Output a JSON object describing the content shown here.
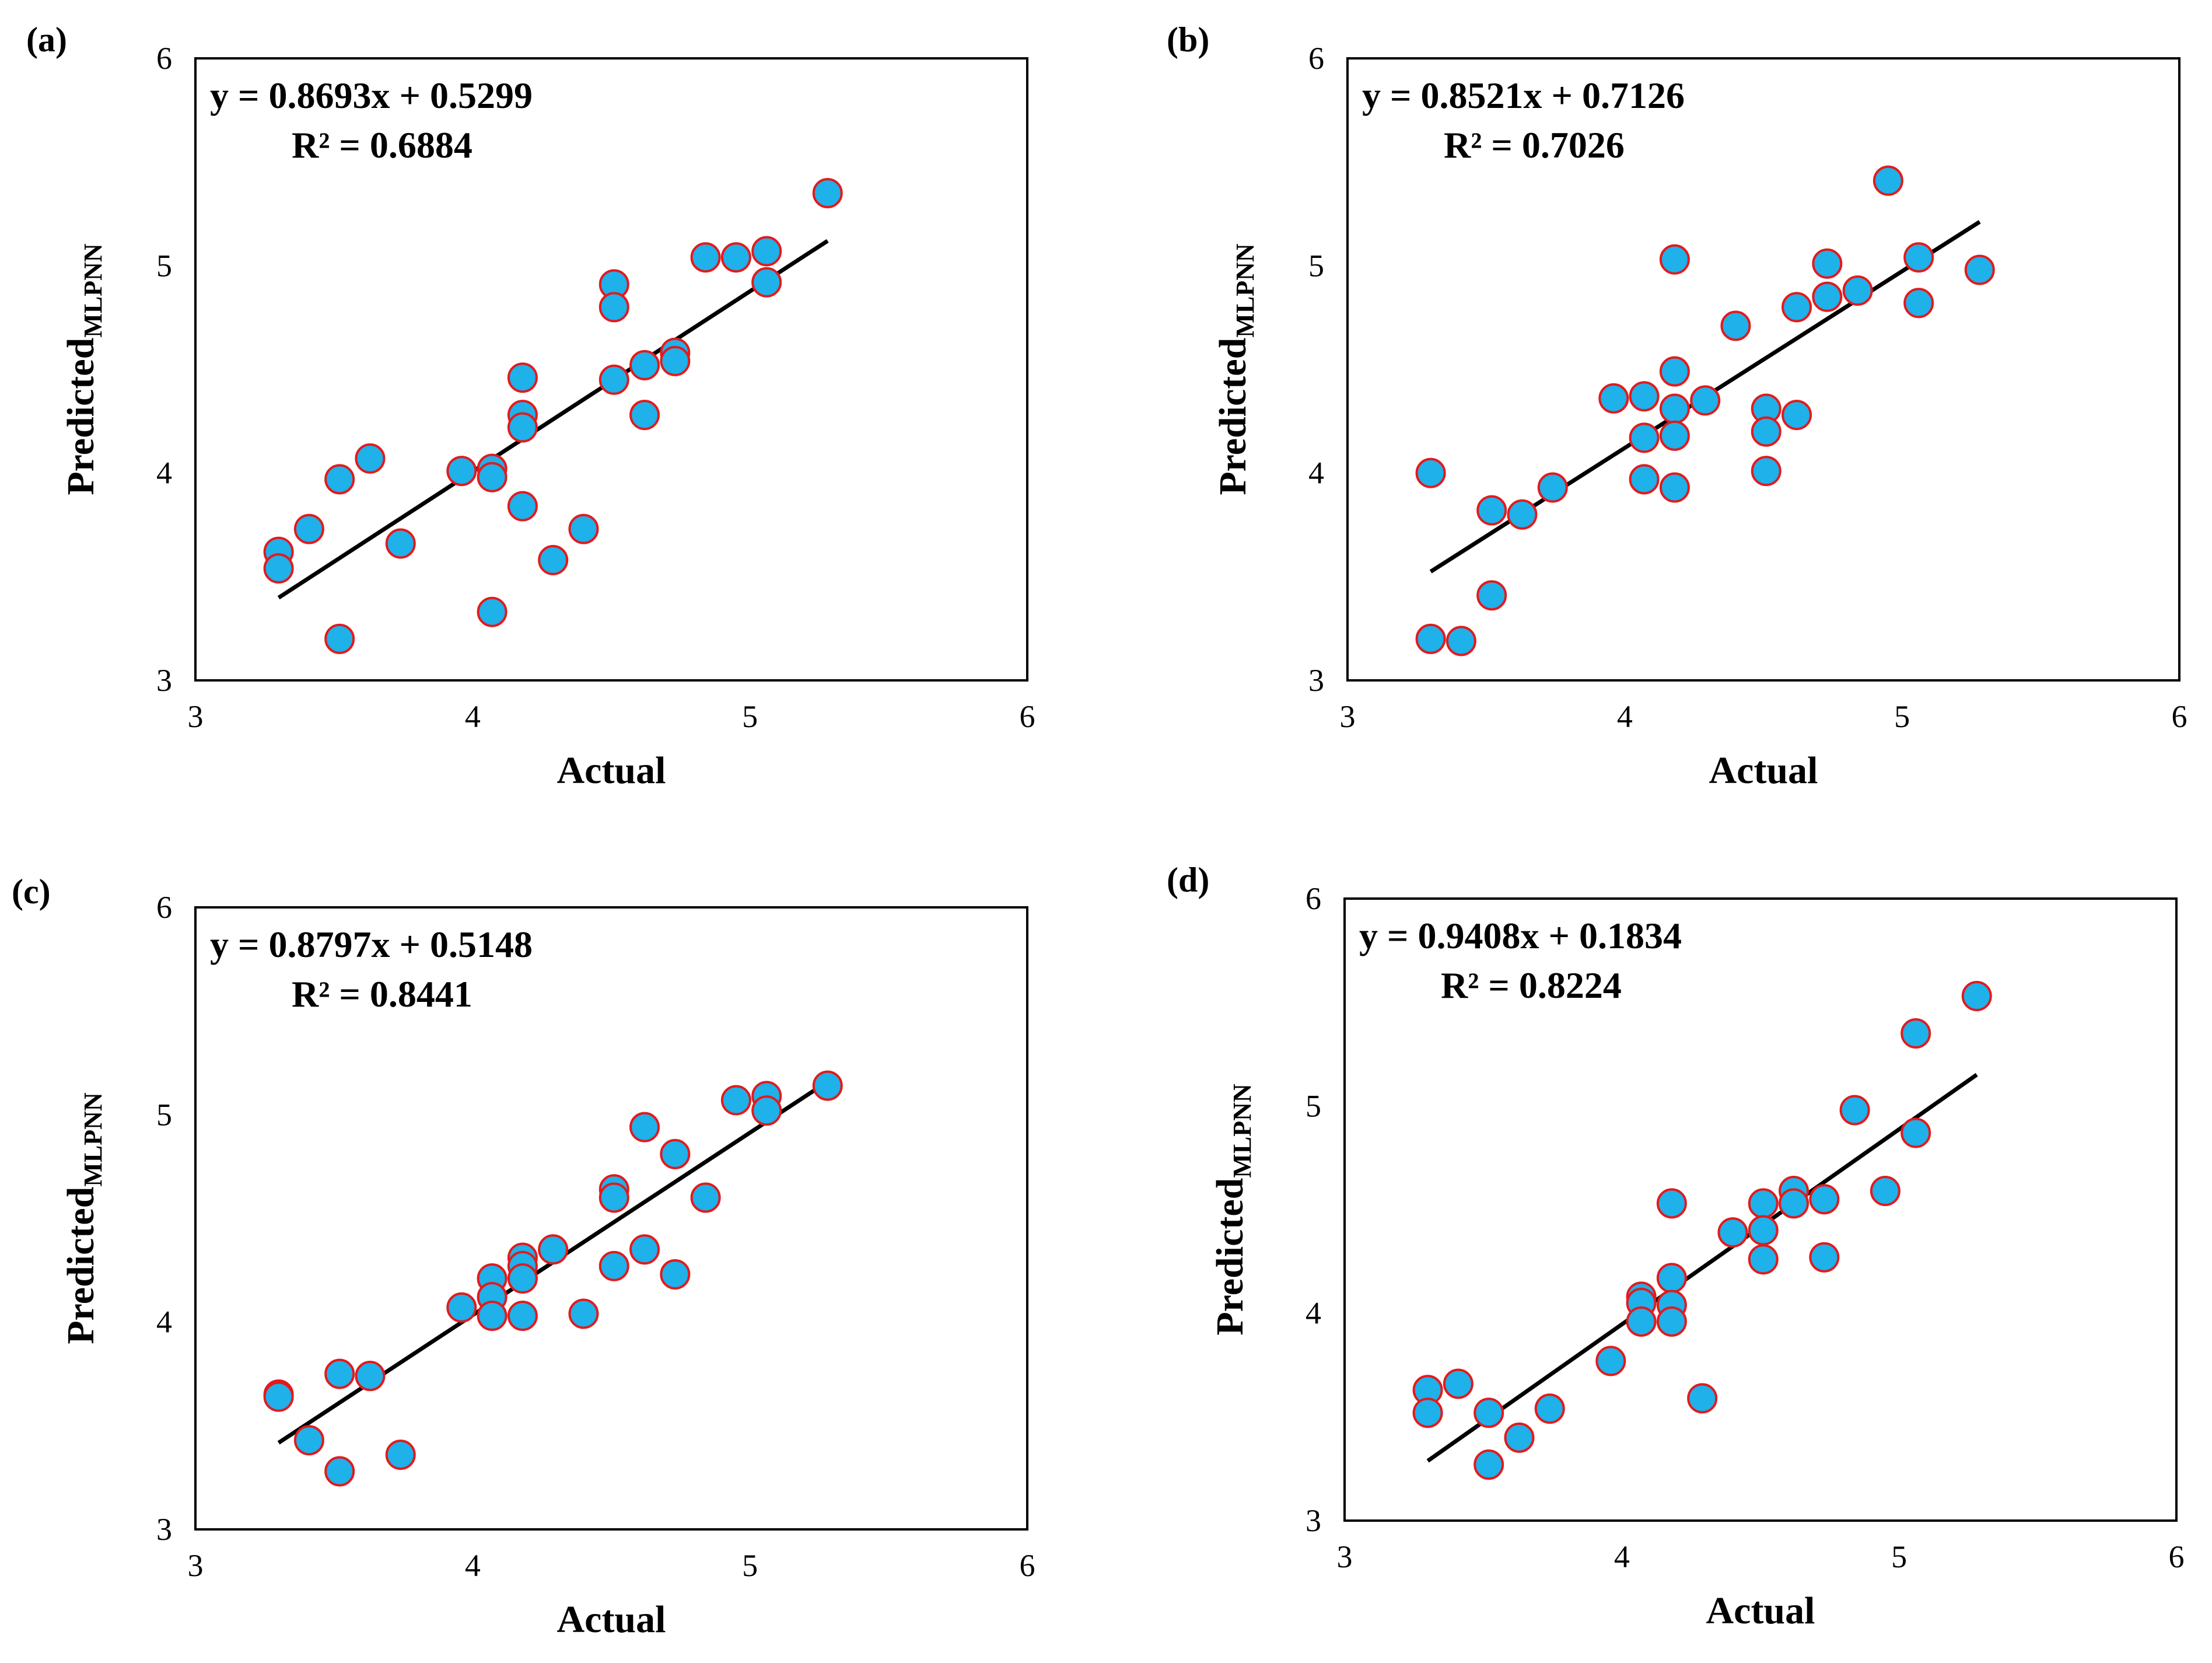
{
  "figure": {
    "marker_fill": "#1EB1EA",
    "marker_stroke": "#E31A1C",
    "trend_color": "#000000"
  },
  "chart_data": [
    {
      "type": "scatter",
      "panel_label": "(a)",
      "xlabel": "Actual",
      "ylabel_main": "Predicted",
      "ylabel_sub": "MLPNN",
      "equation": "y = 0.8693x + 0.5299",
      "r2": "R² = 0.6884",
      "xlim": [
        3,
        6
      ],
      "ylim": [
        3,
        6
      ],
      "xticks": [
        "3",
        "4",
        "5",
        "6"
      ],
      "yticks": [
        "3",
        "4",
        "5",
        "6"
      ],
      "trendline": {
        "slope": 0.8693,
        "intercept": 0.5299,
        "x_range": [
          3.3,
          5.28
        ]
      },
      "points": [
        [
          3.3,
          3.62
        ],
        [
          3.3,
          3.54
        ],
        [
          3.41,
          3.73
        ],
        [
          3.52,
          3.97
        ],
        [
          3.52,
          3.2
        ],
        [
          3.63,
          4.07
        ],
        [
          3.74,
          3.66
        ],
        [
          3.96,
          4.01
        ],
        [
          4.07,
          4.02
        ],
        [
          4.07,
          3.98
        ],
        [
          4.07,
          3.33
        ],
        [
          4.18,
          4.46
        ],
        [
          4.18,
          4.28
        ],
        [
          4.18,
          4.22
        ],
        [
          4.18,
          3.84
        ],
        [
          4.29,
          3.58
        ],
        [
          4.4,
          3.73
        ],
        [
          4.51,
          4.91
        ],
        [
          4.51,
          4.8
        ],
        [
          4.51,
          4.45
        ],
        [
          4.62,
          4.52
        ],
        [
          4.62,
          4.28
        ],
        [
          4.73,
          4.58
        ],
        [
          4.73,
          4.54
        ],
        [
          4.84,
          5.04
        ],
        [
          4.95,
          5.04
        ],
        [
          5.06,
          5.07
        ],
        [
          5.06,
          4.92
        ],
        [
          5.28,
          5.35
        ]
      ]
    },
    {
      "type": "scatter",
      "panel_label": "(b)",
      "xlabel": "Actual",
      "ylabel_main": "Predicted",
      "ylabel_sub": "MLPNN",
      "equation": "y = 0.8521x + 0.7126",
      "r2": "R² = 0.7026",
      "xlim": [
        3,
        6
      ],
      "ylim": [
        3,
        6
      ],
      "xticks": [
        "3",
        "4",
        "5",
        "6"
      ],
      "yticks": [
        "3",
        "4",
        "5",
        "6"
      ],
      "trendline": {
        "slope": 0.8521,
        "intercept": 0.7126,
        "x_range": [
          3.3,
          5.28
        ]
      },
      "points": [
        [
          3.3,
          4.0
        ],
        [
          3.3,
          3.2
        ],
        [
          3.41,
          3.19
        ],
        [
          3.52,
          3.82
        ],
        [
          3.52,
          3.41
        ],
        [
          3.63,
          3.8
        ],
        [
          3.74,
          3.93
        ],
        [
          3.96,
          4.36
        ],
        [
          4.07,
          4.37
        ],
        [
          4.07,
          4.17
        ],
        [
          4.07,
          3.97
        ],
        [
          4.18,
          5.03
        ],
        [
          4.18,
          4.49
        ],
        [
          4.18,
          4.31
        ],
        [
          4.18,
          4.18
        ],
        [
          4.18,
          3.93
        ],
        [
          4.29,
          4.35
        ],
        [
          4.4,
          4.71
        ],
        [
          4.51,
          4.31
        ],
        [
          4.51,
          4.2
        ],
        [
          4.51,
          4.01
        ],
        [
          4.62,
          4.8
        ],
        [
          4.62,
          4.28
        ],
        [
          4.73,
          5.01
        ],
        [
          4.73,
          4.85
        ],
        [
          4.84,
          4.88
        ],
        [
          4.95,
          5.41
        ],
        [
          5.06,
          5.04
        ],
        [
          5.06,
          4.82
        ],
        [
          5.28,
          4.98
        ]
      ]
    },
    {
      "type": "scatter",
      "panel_label": "(c)",
      "xlabel": "Actual",
      "ylabel_main": "Predicted",
      "ylabel_sub": "MLPNN",
      "equation": "y = 0.8797x + 0.5148",
      "r2": "R² = 0.8441",
      "xlim": [
        3,
        6
      ],
      "ylim": [
        3,
        6
      ],
      "xticks": [
        "3",
        "4",
        "5",
        "6"
      ],
      "yticks": [
        "3",
        "4",
        "5",
        "6"
      ],
      "trendline": {
        "slope": 0.8797,
        "intercept": 0.5148,
        "x_range": [
          3.3,
          5.28
        ]
      },
      "points": [
        [
          3.3,
          3.65
        ],
        [
          3.3,
          3.64
        ],
        [
          3.41,
          3.43
        ],
        [
          3.52,
          3.75
        ],
        [
          3.52,
          3.28
        ],
        [
          3.63,
          3.74
        ],
        [
          3.74,
          3.36
        ],
        [
          3.96,
          4.07
        ],
        [
          4.07,
          4.21
        ],
        [
          4.07,
          4.12
        ],
        [
          4.07,
          4.03
        ],
        [
          4.18,
          4.31
        ],
        [
          4.18,
          4.27
        ],
        [
          4.18,
          4.21
        ],
        [
          4.18,
          4.03
        ],
        [
          4.29,
          4.35
        ],
        [
          4.4,
          4.04
        ],
        [
          4.51,
          4.64
        ],
        [
          4.51,
          4.6
        ],
        [
          4.51,
          4.27
        ],
        [
          4.62,
          4.94
        ],
        [
          4.62,
          4.35
        ],
        [
          4.73,
          4.81
        ],
        [
          4.73,
          4.23
        ],
        [
          4.84,
          4.6
        ],
        [
          4.95,
          5.07
        ],
        [
          5.06,
          5.09
        ],
        [
          5.06,
          5.02
        ],
        [
          5.28,
          5.14
        ]
      ]
    },
    {
      "type": "scatter",
      "panel_label": "(d)",
      "xlabel": "Actual",
      "ylabel_main": "Predicted",
      "ylabel_sub": "MLPNN",
      "equation": "y = 0.9408x + 0.1834",
      "r2": "R² = 0.8224",
      "xlim": [
        3,
        6
      ],
      "ylim": [
        3,
        6
      ],
      "xticks": [
        "3",
        "4",
        "5",
        "6"
      ],
      "yticks": [
        "3",
        "4",
        "5",
        "6"
      ],
      "trendline": {
        "slope": 0.9408,
        "intercept": 0.1834,
        "x_range": [
          3.3,
          5.28
        ]
      },
      "points": [
        [
          3.3,
          3.63
        ],
        [
          3.3,
          3.52
        ],
        [
          3.41,
          3.66
        ],
        [
          3.52,
          3.52
        ],
        [
          3.52,
          3.27
        ],
        [
          3.63,
          3.4
        ],
        [
          3.74,
          3.54
        ],
        [
          3.96,
          3.77
        ],
        [
          4.07,
          4.08
        ],
        [
          4.07,
          4.05
        ],
        [
          4.07,
          3.96
        ],
        [
          4.18,
          4.53
        ],
        [
          4.18,
          4.17
        ],
        [
          4.18,
          4.04
        ],
        [
          4.18,
          3.96
        ],
        [
          4.29,
          3.59
        ],
        [
          4.4,
          4.39
        ],
        [
          4.51,
          4.53
        ],
        [
          4.51,
          4.4
        ],
        [
          4.51,
          4.26
        ],
        [
          4.62,
          4.59
        ],
        [
          4.62,
          4.53
        ],
        [
          4.73,
          4.55
        ],
        [
          4.73,
          4.27
        ],
        [
          4.84,
          4.98
        ],
        [
          4.95,
          4.59
        ],
        [
          5.06,
          5.35
        ],
        [
          5.06,
          4.87
        ],
        [
          5.28,
          5.53
        ]
      ]
    }
  ]
}
